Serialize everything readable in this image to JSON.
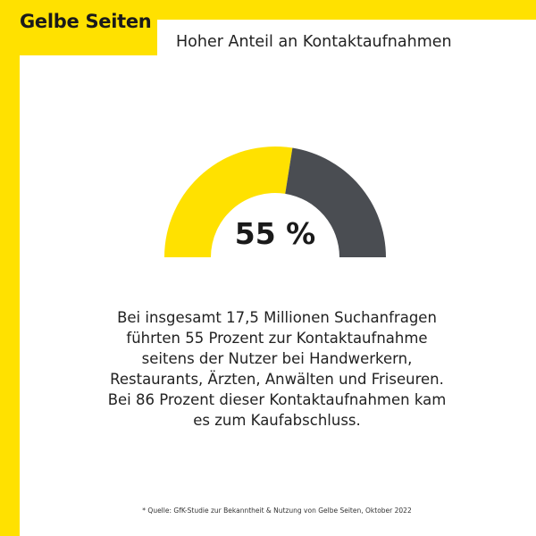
{
  "colors": {
    "brand_yellow": "#FFE100",
    "dark_gray": "#4A4D52",
    "background": "#FFFFFF",
    "text": "#1A1A1A"
  },
  "brand": {
    "name": "Gelbe Seiten"
  },
  "headline": "Hoher Anteil an Kontaktaufnahmen",
  "chart_data": {
    "type": "gauge",
    "value": 55,
    "max": 100,
    "unit": "%",
    "label": "55 %",
    "segments": [
      {
        "name": "Kontaktaufnahme",
        "value": 55,
        "color": "#FFE100"
      },
      {
        "name": "",
        "value": 45,
        "color": "#4A4D52"
      }
    ]
  },
  "body_text": "Bei insgesamt 17,5 Millionen Suchanfragen führten 55 Prozent zur Kontaktaufnahme seitens der Nutzer bei Handwerkern, Restaurants, Ärzten, Anwälten und Friseuren. Bei 86 Prozent dieser Kontaktaufnahmen kam es zum Kaufabschluss.",
  "source": "* Quelle: GfK-Studie zur Bekanntheit & Nutzung von Gelbe Seiten, Oktober 2022"
}
